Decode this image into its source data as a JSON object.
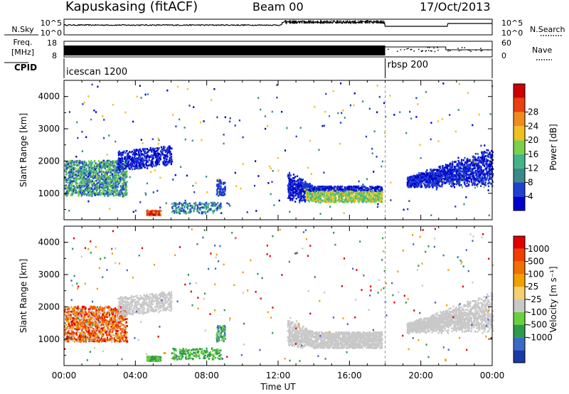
{
  "header": {
    "station": "Kapuskasing (fitACF)",
    "beam": "Beam 00",
    "date": "17/Oct/2013"
  },
  "colors": {
    "power_scale": [
      "#0000cc",
      "#2040d0",
      "#3a8a8a",
      "#44b38a",
      "#7cd04a",
      "#f0c020",
      "#f08a20",
      "#e84010",
      "#cc0000"
    ],
    "velocity_scale": [
      "#e00000",
      "#f04000",
      "#f07000",
      "#f0a000",
      "#f4d070",
      "#c8c8c8",
      "#6ad040",
      "#2e9a4a",
      "#3a6ac8",
      "#1a3aa8"
    ],
    "panel_frame": "#000000"
  },
  "chart_data": [
    {
      "type": "line",
      "panel": "n-sky / n-search",
      "left_labels": [
        "N.Sky"
      ],
      "left_ticks": [
        "10^5",
        "10^0"
      ],
      "right_labels": [
        "N.Search"
      ],
      "right_ticks": [
        "10^5",
        "10^0"
      ],
      "x": [
        "00:00",
        "04:00",
        "08:00",
        "12:00",
        "16:00",
        "20:00",
        "00:00"
      ]
    },
    {
      "type": "line",
      "panel": "frequency / nave",
      "left_labels": [
        "Freq.",
        "[MHz]"
      ],
      "left_ticks": [
        "18",
        "8"
      ],
      "right_labels": [
        "Nave"
      ],
      "right_ticks": [
        "60",
        "0"
      ]
    },
    {
      "type": "table",
      "panel": "cpid",
      "label": "CPID",
      "segments": [
        {
          "name": "icescan 1200",
          "start_hour": 0,
          "end_hour": 18.0
        },
        {
          "name": "rbsp 200",
          "start_hour": 18.0,
          "end_hour": 24
        }
      ]
    },
    {
      "type": "heatmap",
      "panel": "power",
      "ylabel": "Slant Range [km]",
      "yticks": [
        "1000",
        "2000",
        "3000",
        "4000"
      ],
      "ylim": [
        180,
        4500
      ],
      "xlim_hours": [
        0,
        24
      ],
      "colorbar_label": "Power [dB]",
      "colorbar_ticks": [
        "4",
        "8",
        "12",
        "16",
        "20",
        "24",
        "28"
      ]
    },
    {
      "type": "heatmap",
      "panel": "velocity",
      "ylabel": "Slant Range [km]",
      "yticks": [
        "1000",
        "2000",
        "3000",
        "4000"
      ],
      "ylim": [
        180,
        4500
      ],
      "xlim_hours": [
        0,
        24
      ],
      "xlabel": "Time UT",
      "xticks": [
        "00:00",
        "04:00",
        "08:00",
        "12:00",
        "16:00",
        "20:00",
        "00:00"
      ],
      "colorbar_label": "Velocity [m s⁻¹]",
      "colorbar_ticks": [
        "1000",
        "500",
        "100",
        "25",
        "-25",
        "-100",
        "-500",
        "-1000"
      ]
    }
  ]
}
